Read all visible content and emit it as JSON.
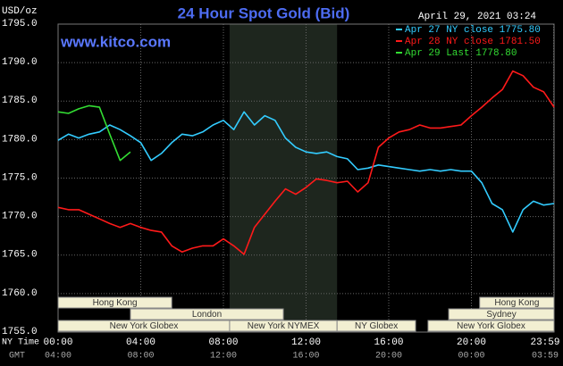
{
  "chart_data": {
    "type": "line",
    "title": "24 Hour Spot Gold (Bid)",
    "subtitle": "www.kitco.com",
    "date": "April 29, 2021 03:24",
    "unit_label": "USD/oz",
    "x_row_labels": [
      "NY Time",
      "GMT"
    ],
    "x": [
      0,
      0.5,
      1,
      1.5,
      2,
      2.5,
      3,
      3.5,
      4,
      4.5,
      5,
      5.5,
      6,
      6.5,
      7,
      7.5,
      8,
      8.5,
      9,
      9.5,
      10,
      10.5,
      11,
      11.5,
      12,
      12.5,
      13,
      13.5,
      14,
      14.5,
      15,
      15.5,
      16,
      16.5,
      17,
      17.5,
      18,
      18.5,
      19,
      19.5,
      20,
      20.5,
      21,
      21.5,
      22,
      22.5,
      23,
      23.5,
      24
    ],
    "xlim": [
      0,
      24
    ],
    "xticks": [
      {
        "value": 0,
        "label": "00:00"
      },
      {
        "value": 4,
        "label": "04:00"
      },
      {
        "value": 8,
        "label": "08:00"
      },
      {
        "value": 12,
        "label": "12:00"
      },
      {
        "value": 16,
        "label": "16:00"
      },
      {
        "value": 20,
        "label": "20:00"
      },
      {
        "value": 23.98,
        "label": "23:59"
      }
    ],
    "gmt_labels": [
      "04:00",
      "08:00",
      "12:00",
      "16:00",
      "20:00",
      "00:00",
      "03:59"
    ],
    "ylim": [
      1755,
      1795
    ],
    "yticks": [
      {
        "value": 1755,
        "label": "1755.0"
      },
      {
        "value": 1760,
        "label": "1760.0"
      },
      {
        "value": 1765,
        "label": "1765.0"
      },
      {
        "value": 1770,
        "label": "1770.0"
      },
      {
        "value": 1775,
        "label": "1775.0"
      },
      {
        "value": 1780,
        "label": "1780.0"
      },
      {
        "value": 1785,
        "label": "1785.0"
      },
      {
        "value": 1790,
        "label": "1790.0"
      },
      {
        "value": 1795,
        "label": "1795.0"
      }
    ],
    "grid": true,
    "shade": [
      8.3,
      13.5
    ],
    "sessions": [
      [
        {
          "name": "Hong Kong",
          "start": 0,
          "end": 5.5
        },
        {
          "name": "Hong Kong",
          "start": 20.4,
          "end": 24
        }
      ],
      [
        {
          "name": "London",
          "start": 3.5,
          "end": 10.9
        },
        {
          "name": "Sydney",
          "start": 18.9,
          "end": 24
        }
      ],
      [
        {
          "name": "New York Globex",
          "start": 0,
          "end": 8.3
        },
        {
          "name": "New York NYMEX",
          "start": 8.3,
          "end": 13.5
        },
        {
          "name": "NY Globex",
          "start": 13.5,
          "end": 17.3
        },
        {
          "name": "New York Globex",
          "start": 17.9,
          "end": 24
        }
      ]
    ],
    "series": [
      {
        "name": "Apr 27 NY close 1775.80",
        "color": "#33ccff",
        "values": [
          1779.9,
          1780.7,
          1780.2,
          1780.7,
          1781.0,
          1781.9,
          1781.3,
          1780.5,
          1779.6,
          1777.3,
          1778.2,
          1779.6,
          1780.7,
          1780.5,
          1781.0,
          1781.9,
          1782.5,
          1781.3,
          1783.6,
          1781.9,
          1783.1,
          1782.5,
          1780.2,
          1779.0,
          1778.4,
          1778.2,
          1778.4,
          1777.8,
          1777.5,
          1776.1,
          1776.3,
          1776.7,
          1776.5,
          1776.3,
          1776.1,
          1775.9,
          1776.1,
          1775.9,
          1776.1,
          1775.9,
          1775.9,
          1774.4,
          1771.7,
          1770.9,
          1768.0,
          1770.9,
          1772.0,
          1771.5,
          1771.7
        ]
      },
      {
        "name": "Apr 28 NY close 1781.50",
        "color": "#ff1a1a",
        "values": [
          1771.2,
          1770.9,
          1770.9,
          1770.3,
          1769.7,
          1769.1,
          1768.6,
          1769.1,
          1768.6,
          1768.2,
          1768.0,
          1766.2,
          1765.4,
          1765.9,
          1766.2,
          1766.2,
          1767.1,
          1766.2,
          1765.1,
          1768.6,
          1770.3,
          1772.0,
          1773.6,
          1772.9,
          1773.8,
          1774.9,
          1774.7,
          1774.4,
          1774.6,
          1773.2,
          1774.4,
          1779.0,
          1780.2,
          1781.0,
          1781.3,
          1781.9,
          1781.5,
          1781.5,
          1781.7,
          1781.9,
          1783.1,
          1784.2,
          1785.4,
          1786.5,
          1788.9,
          1788.3,
          1786.8,
          1786.2,
          1784.2
        ]
      },
      {
        "name": "Apr 29 Last 1778.80",
        "color": "#33dd33",
        "values": [
          1783.6,
          1783.4,
          1784.0,
          1784.4,
          1784.2,
          1780.7,
          1777.3,
          1778.4,
          null,
          null,
          null,
          null,
          null,
          null,
          null,
          null,
          null,
          null,
          null,
          null,
          null,
          null,
          null,
          null,
          null,
          null,
          null,
          null,
          null,
          null,
          null,
          null,
          null,
          null,
          null,
          null,
          null,
          null,
          null,
          null,
          null,
          null,
          null,
          null,
          null,
          null,
          null,
          null,
          null
        ]
      }
    ]
  }
}
